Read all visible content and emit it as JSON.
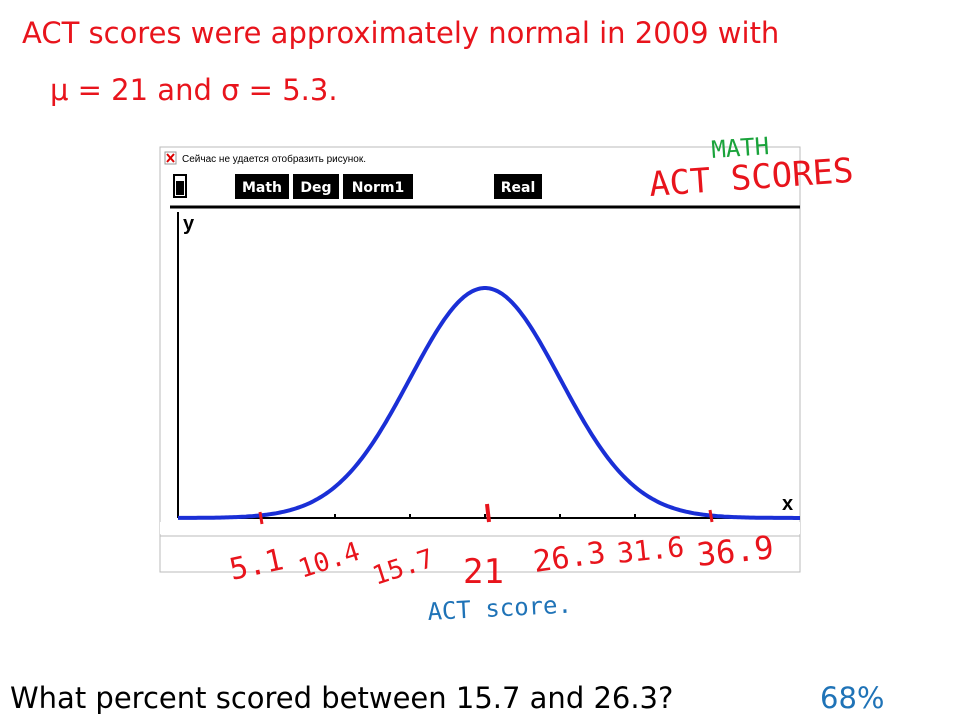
{
  "slide": {
    "title": "ACT scores were approximately normal in 2009 with",
    "parameters": "μ = 21 and σ = 5.3.",
    "question": "What percent scored between 15.7 and 26.3?",
    "answer": "68%"
  },
  "screenshot": {
    "broken_image_text": "Сейчас не удается отобразить рисунок.",
    "status_bar": [
      "Math",
      "Deg",
      "Norm1",
      "Real"
    ],
    "y_axis_label": "y",
    "x_axis_label": "x"
  },
  "annotations": {
    "subject": "MATH",
    "graph_title": "ACT SCORES",
    "x_labels": [
      "5.1",
      "10.4",
      "15.7",
      "21",
      "26.3",
      "31.6",
      "36.9"
    ],
    "x_axis_title": "ACT score."
  }
}
